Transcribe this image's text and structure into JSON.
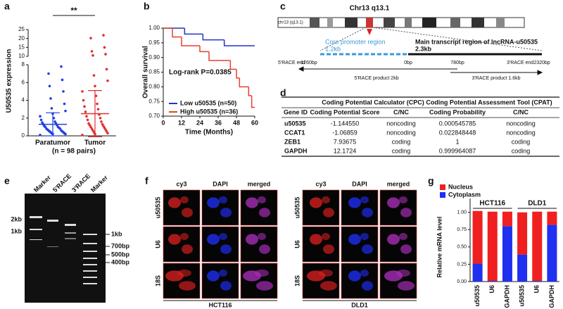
{
  "panel_labels": [
    "a",
    "b",
    "c",
    "d",
    "e",
    "f",
    "g"
  ],
  "chart_data": [
    {
      "type": "dotplot",
      "y_label": "U50535 expression",
      "categories": [
        "Paratumor",
        "Tumor"
      ],
      "subtitle": "(n = 98 pairs)",
      "annotation": "**",
      "ylim": [
        0,
        25
      ],
      "ybreak": [
        8,
        10
      ],
      "yticks": [
        0,
        2,
        4,
        6,
        8,
        10,
        15,
        20,
        25
      ],
      "groups": [
        {
          "color": "#2040e0",
          "mean": 1.3,
          "sd": 1.3,
          "values": [
            0.1,
            0.2,
            0.2,
            0.3,
            0.3,
            0.4,
            0.4,
            0.5,
            0.5,
            0.6,
            0.6,
            0.7,
            0.8,
            0.8,
            0.9,
            1.0,
            1.0,
            1.1,
            1.2,
            1.3,
            1.4,
            1.5,
            1.6,
            1.8,
            2.0,
            2.2,
            2.5,
            2.8,
            3.1,
            3.6,
            4.2,
            5.0,
            5.6,
            6.3,
            7.0,
            7.8
          ]
        },
        {
          "color": "#e03030",
          "mean": 2.5,
          "sd": 2.6,
          "values": [
            0.1,
            0.2,
            0.3,
            0.4,
            0.5,
            0.6,
            0.7,
            0.8,
            0.9,
            1.0,
            1.1,
            1.2,
            1.3,
            1.4,
            1.6,
            1.8,
            2.0,
            2.2,
            2.4,
            2.7,
            3.0,
            3.3,
            3.6,
            4.0,
            4.5,
            5.0,
            5.6,
            6.2,
            6.8,
            7.5,
            10.5,
            11.2,
            12.8,
            15.0,
            20.2,
            21.8
          ]
        }
      ]
    },
    {
      "type": "survival",
      "x_label": "Time (Months)",
      "y_label": "Overall survival",
      "annotation": "Log-rank P=0.0385",
      "xlim": [
        0,
        60
      ],
      "xticks": [
        0,
        12,
        24,
        36,
        48,
        60
      ],
      "ylim": [
        0.7,
        1.0
      ],
      "yticks": [
        {
          "value": 0.7,
          "label": "0.70"
        },
        {
          "value": 0.75,
          "label": "0.75"
        },
        {
          "value": 0.8,
          "label": "0.80"
        },
        {
          "value": 0.85,
          "label": "0.85"
        },
        {
          "value": 0.9,
          "label": "0.90"
        },
        {
          "value": 0.95,
          "label": "0.95"
        },
        {
          "value": 1.0,
          "label": "1.00"
        }
      ],
      "legend": "lower left",
      "series": [
        {
          "name": "Low u50535 (n=50)",
          "color": "#2233cc",
          "x": [
            0,
            14,
            26,
            40
          ],
          "y": [
            1.0,
            0.98,
            0.96,
            0.94
          ]
        },
        {
          "name": "High u50535 (n=36)",
          "color": "#e8402a",
          "x": [
            0,
            6,
            12,
            24,
            30,
            44,
            48,
            50,
            56,
            58
          ],
          "y": [
            1.0,
            0.97,
            0.94,
            0.92,
            0.89,
            0.86,
            0.83,
            0.8,
            0.77,
            0.73
          ]
        }
      ]
    },
    {
      "type": "stacked-bar",
      "y_label": "Relative mRNA level",
      "categories": [
        "u50535",
        "U6",
        "GAPDH",
        "u50535",
        "U6",
        "GAPDH"
      ],
      "groups": [
        "HCT116",
        "DLD1"
      ],
      "ylim": [
        0,
        1.2
      ],
      "yticks": [
        {
          "value": 0,
          "label": "0.00"
        },
        {
          "value": 0.25,
          "label": "0.25"
        },
        {
          "value": 0.5,
          "label": "0.50"
        },
        {
          "value": 0.75,
          "label": "0.75"
        },
        {
          "value": 1.0,
          "label": "1.00"
        }
      ],
      "legend": "upper left",
      "series": [
        {
          "name": "Nucleus",
          "color": "#f02020",
          "values": [
            0.76,
            1.0,
            0.21,
            0.61,
            1.0,
            0.19
          ]
        },
        {
          "name": "Cytoplasm",
          "color": "#2030f0",
          "values": [
            0.26,
            0.01,
            0.8,
            0.39,
            0.01,
            0.82
          ]
        }
      ]
    }
  ],
  "diagram": {
    "title": "Chr13 q13.1",
    "ideogram_label": "chr13 (q13.1)",
    "promoter": {
      "label": "Core promoter region",
      "size": "1.2kb"
    },
    "transcript": {
      "label": "Main transcript region of lncRNA-u50535",
      "size": "2.3kb"
    },
    "ends": [
      "5'RACE end",
      "3'RACE end"
    ],
    "positions": [
      "-1260bp",
      "0bp",
      "780bp",
      "2320bp"
    ],
    "products": [
      "5'RACE product 2kb",
      "3'RACE product 1.6kb"
    ]
  },
  "table": {
    "header_groups": [
      "Coding Potential Calculator (CPC)",
      "Coding Potential Assessment Tool (CPAT)"
    ],
    "columns": [
      "Gene ID",
      "Coding Potential Score",
      "C/NC",
      "Coding Probability",
      "C/NC"
    ],
    "rows": [
      [
        "u50535",
        "-1.144550",
        "noncoding",
        "0.000545785",
        "noncoding"
      ],
      [
        "CCAT1",
        "-1.06859",
        "noncoding",
        "0.022848448",
        "noncoding"
      ],
      [
        "ZEB1",
        "7.93675",
        "coding",
        "1",
        "coding"
      ],
      [
        "GAPDH",
        "12.1724",
        "coding",
        "0.999964087",
        "coding"
      ]
    ]
  },
  "gel": {
    "lanes": [
      "Marker",
      "5'RACE",
      "3'RACE",
      "Marker"
    ],
    "left_markers": [
      "2kb",
      "1kb"
    ],
    "right_markers": [
      "1kb",
      "700bp",
      "500bp",
      "400bp"
    ]
  },
  "imaging": {
    "columns": [
      "cy3",
      "DAPI",
      "merged"
    ],
    "rows": [
      "u50535",
      "U6",
      "18S"
    ],
    "cell_lines": [
      "HCT116",
      "DLD1"
    ]
  }
}
